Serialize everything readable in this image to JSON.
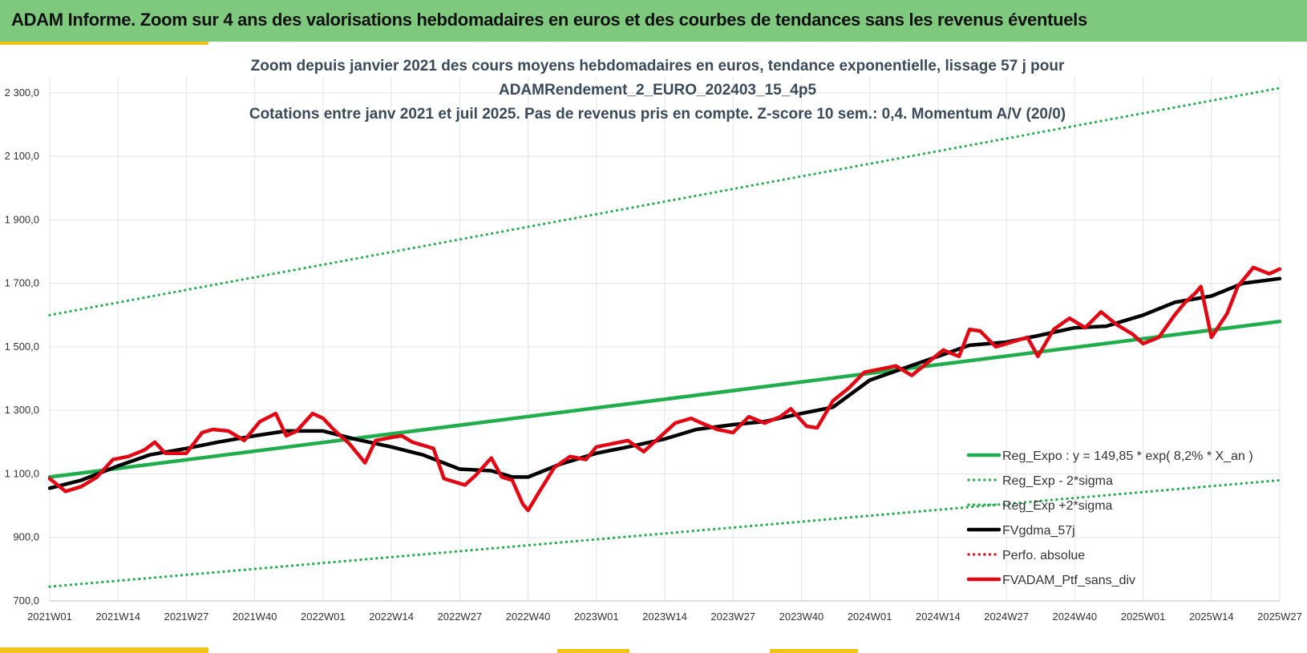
{
  "header": {
    "title": "ADAM Informe. Zoom sur 4 ans des valorisations hebdomadaires en euros et des courbes de tendances sans les revenus éventuels"
  },
  "chart_data": {
    "type": "line",
    "title_lines": [
      "Zoom depuis janvier 2021 des cours moyens hebdomadaires  en euros, tendance exponentielle, lissage 57 j pour",
      "ADAMRendement_2_EURO_202403_15_4p5",
      "Cotations  entre janv 2021 et juil 2025. Pas de revenus pris en compte. Z-score 10 sem.: 0,4. Momentum  A/V (20/0)"
    ],
    "ylim": [
      700,
      2350
    ],
    "yticks": [
      700,
      900,
      1100,
      1300,
      1500,
      1700,
      1900,
      2100,
      2300
    ],
    "ytick_labels": [
      "700,0",
      "900,0",
      "1 100,0",
      "1 300,0",
      "1 500,0",
      "1 700,0",
      "1 900,0",
      "2 100,0",
      "2 300,0"
    ],
    "xlim": [
      0,
      234
    ],
    "xticks": [
      0,
      13,
      26,
      39,
      52,
      65,
      78,
      91,
      104,
      117,
      130,
      143,
      156,
      169,
      182,
      195,
      208,
      221,
      234
    ],
    "xtick_labels": [
      "2021W01",
      "2021W14",
      "2021W27",
      "2021W40",
      "2022W01",
      "2022W14",
      "2022W27",
      "2022W40",
      "2023W01",
      "2023W14",
      "2023W27",
      "2023W40",
      "2024W01",
      "2024W14",
      "2024W27",
      "2024W40",
      "2025W01",
      "2025W14",
      "2025W27"
    ],
    "grid": true,
    "legend_position": "bottom-right",
    "series": [
      {
        "name": "Reg_Expo : y = 149,85 * exp( 8,2% *  X_an )",
        "color": "#1fae4b",
        "style": "solid",
        "x": [
          0,
          234
        ],
        "y": [
          1090,
          1580
        ]
      },
      {
        "name": "Reg_Exp - 2*sigma",
        "color": "#1fae4b",
        "style": "dotted",
        "x": [
          0,
          234
        ],
        "y": [
          745,
          1080
        ]
      },
      {
        "name": "Reg_Exp +2*sigma",
        "color": "#1fae4b",
        "style": "dotted",
        "x": [
          0,
          234
        ],
        "y": [
          1600,
          2315
        ]
      },
      {
        "name": "FVgdma_57j",
        "color": "#000000",
        "style": "solid",
        "x": [
          0,
          6,
          13,
          19,
          26,
          32,
          39,
          45,
          52,
          58,
          65,
          71,
          78,
          84,
          88,
          91,
          97,
          104,
          110,
          117,
          123,
          130,
          136,
          143,
          149,
          156,
          162,
          169,
          175,
          182,
          188,
          195,
          201,
          208,
          214,
          221,
          227,
          234
        ],
        "y": [
          1055,
          1080,
          1125,
          1160,
          1180,
          1200,
          1220,
          1235,
          1235,
          1210,
          1185,
          1160,
          1115,
          1110,
          1090,
          1090,
          1130,
          1165,
          1185,
          1210,
          1240,
          1255,
          1265,
          1290,
          1310,
          1395,
          1430,
          1470,
          1505,
          1515,
          1535,
          1560,
          1565,
          1600,
          1640,
          1660,
          1700,
          1715
        ]
      },
      {
        "name": "Perfo. absolue",
        "color": "#e30613",
        "style": "dotted",
        "x": [],
        "y": []
      },
      {
        "name": "FVADAM_Ptf_sans_div",
        "color": "#e30613",
        "style": "solid",
        "x": [
          0,
          3,
          6,
          9,
          12,
          15,
          18,
          20,
          22,
          26,
          29,
          31,
          34,
          37,
          40,
          43,
          45,
          47,
          50,
          52,
          54,
          57,
          60,
          62,
          65,
          67,
          69,
          73,
          75,
          77,
          79,
          81,
          84,
          86,
          88,
          90,
          91,
          93,
          96,
          99,
          102,
          104,
          107,
          110,
          113,
          116,
          119,
          122,
          124,
          127,
          130,
          133,
          136,
          139,
          141,
          144,
          146,
          149,
          152,
          155,
          158,
          161,
          164,
          167,
          170,
          173,
          175,
          177,
          180,
          183,
          186,
          188,
          191,
          194,
          197,
          200,
          203,
          206,
          208,
          211,
          214,
          216,
          218,
          219,
          221,
          224,
          226,
          229,
          232,
          234
        ],
        "y": [
          1085,
          1045,
          1060,
          1090,
          1145,
          1155,
          1175,
          1200,
          1165,
          1165,
          1230,
          1240,
          1235,
          1205,
          1265,
          1290,
          1220,
          1235,
          1290,
          1275,
          1240,
          1195,
          1135,
          1205,
          1215,
          1220,
          1200,
          1180,
          1085,
          1075,
          1065,
          1095,
          1150,
          1090,
          1080,
          1005,
          985,
          1040,
          1120,
          1155,
          1145,
          1185,
          1195,
          1205,
          1170,
          1215,
          1260,
          1275,
          1260,
          1240,
          1230,
          1280,
          1260,
          1280,
          1305,
          1250,
          1245,
          1330,
          1370,
          1420,
          1430,
          1440,
          1410,
          1450,
          1490,
          1470,
          1555,
          1550,
          1500,
          1515,
          1530,
          1470,
          1555,
          1590,
          1560,
          1610,
          1570,
          1540,
          1510,
          1530,
          1600,
          1640,
          1670,
          1690,
          1530,
          1605,
          1690,
          1750,
          1730,
          1745
        ]
      }
    ]
  }
}
